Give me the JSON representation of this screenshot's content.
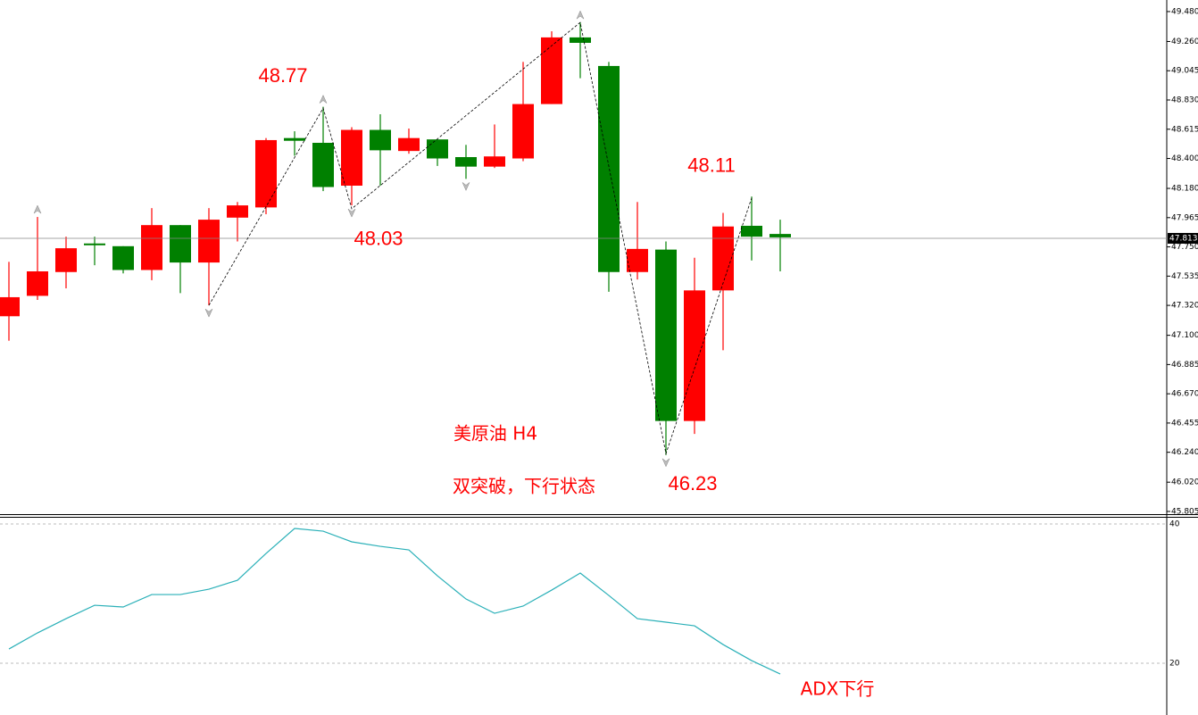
{
  "chart_data": [
    {
      "type": "candlestick",
      "title": "美原油 H4",
      "subtitle": "双突破，下行状态",
      "open": [
        47.24,
        47.39,
        47.565,
        47.775,
        47.755,
        47.58,
        47.91,
        47.635,
        47.965,
        48.04,
        48.55,
        48.515,
        48.2,
        48.61,
        48.455,
        48.54,
        48.41,
        48.34,
        48.4,
        48.8,
        49.29,
        49.08,
        47.565,
        47.73,
        46.47,
        47.43,
        47.905,
        47.845
      ],
      "high": [
        47.64,
        47.97,
        47.825,
        47.825,
        47.755,
        48.035,
        47.91,
        48.035,
        48.08,
        48.55,
        48.6,
        48.78,
        48.63,
        48.725,
        48.62,
        48.54,
        48.5,
        48.65,
        49.11,
        49.335,
        49.4,
        49.11,
        48.08,
        47.79,
        47.67,
        48.0,
        48.12,
        47.95
      ],
      "low": [
        47.06,
        47.36,
        47.445,
        47.615,
        47.555,
        47.505,
        47.41,
        47.32,
        47.79,
        47.99,
        48.42,
        48.16,
        48.055,
        48.2,
        48.435,
        48.345,
        48.25,
        48.33,
        48.38,
        48.8,
        48.99,
        47.42,
        47.51,
        46.22,
        46.375,
        46.99,
        47.65,
        47.57
      ],
      "close": [
        47.38,
        47.57,
        47.74,
        47.77,
        47.58,
        47.91,
        47.635,
        47.95,
        48.055,
        48.535,
        48.53,
        48.19,
        48.61,
        48.46,
        48.55,
        48.4,
        48.34,
        48.415,
        48.8,
        49.29,
        49.25,
        47.565,
        47.735,
        46.47,
        47.43,
        47.9,
        47.825,
        47.82
      ],
      "up_color": "#ff0000",
      "down_color": "#008000",
      "ylim": [
        45.785,
        49.565
      ],
      "yticks": [
        {
          "value": 49.48,
          "label": "49.480"
        },
        {
          "value": 49.26,
          "label": "49.260"
        },
        49.045,
        {
          "value": 48.83,
          "label": "48.830"
        },
        48.615,
        {
          "value": 48.4,
          "label": "48.400"
        },
        {
          "value": 48.18,
          "label": "48.180"
        },
        47.965,
        {
          "value": 47.75,
          "label": "47.750"
        },
        47.535,
        {
          "value": 47.32,
          "label": "47.320"
        },
        {
          "value": 47.1,
          "label": "47.100"
        },
        46.885,
        {
          "value": 46.67,
          "label": "46.670"
        },
        46.455,
        {
          "value": 46.24,
          "label": "46.240"
        },
        {
          "value": 46.02,
          "label": "46.020"
        },
        45.805
      ],
      "last_price": 47.813,
      "zigzag": {
        "x": [
          7,
          11,
          12,
          20,
          23,
          26
        ],
        "values": [
          47.32,
          48.77,
          48.03,
          49.4,
          46.23,
          48.11
        ]
      },
      "fractals": {
        "up": [
          1,
          11,
          20
        ],
        "down": [
          7,
          12,
          16,
          23
        ]
      }
    },
    {
      "type": "line",
      "title": "ADX下行",
      "color": "#2ab0b8",
      "values": [
        22.05,
        24.36,
        26.41,
        28.33,
        28.08,
        29.87,
        29.87,
        30.64,
        31.92,
        35.77,
        39.36,
        38.97,
        37.44,
        36.79,
        36.28,
        32.56,
        29.23,
        27.18,
        28.21,
        30.51,
        32.95,
        29.74,
        26.41,
        25.9,
        25.38,
        22.69,
        20.38,
        18.46
      ],
      "ylim": [
        12.7,
        40.9
      ],
      "yticks": [
        20,
        40
      ]
    }
  ]
}
